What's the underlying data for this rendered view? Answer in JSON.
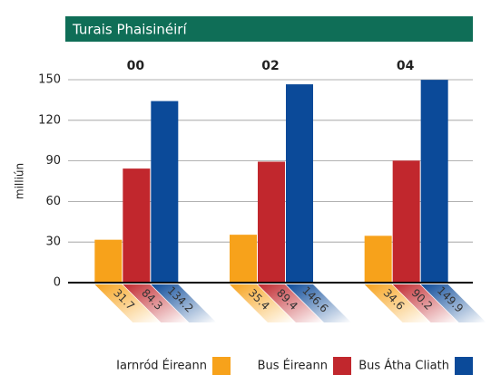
{
  "chart_data": {
    "type": "bar",
    "title": "Turais Phaisinéirí",
    "ylabel": "milliún",
    "categories": [
      "00",
      "02",
      "04"
    ],
    "series": [
      {
        "name": "Iarnród Éireann",
        "color": "#f7a21b",
        "values": [
          31.7,
          35.4,
          34.6
        ]
      },
      {
        "name": "Bus Éireann",
        "color": "#c1272d",
        "values": [
          84.3,
          89.4,
          90.2
        ]
      },
      {
        "name": "Bus Átha Cliath",
        "color": "#0b4a99",
        "values": [
          134.2,
          146.6,
          149.9
        ]
      }
    ],
    "ylim": [
      0,
      150
    ],
    "yticks": [
      0,
      30,
      60,
      90,
      120,
      150
    ],
    "grid": true,
    "legend": "bottom"
  }
}
